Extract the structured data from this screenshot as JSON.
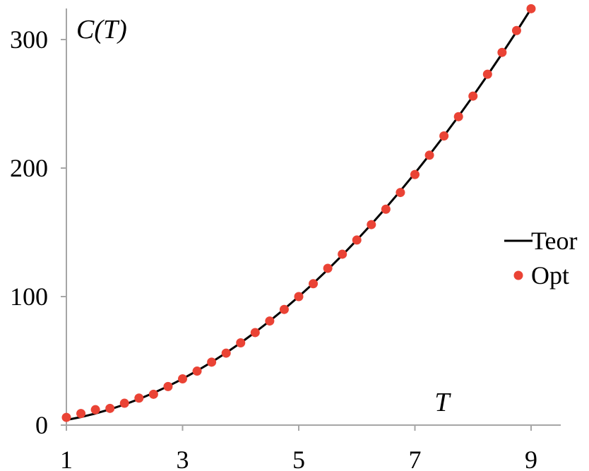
{
  "chart_data": {
    "type": "line",
    "title": "",
    "xlabel": "T",
    "ylabel": "C(T)",
    "xlim": [
      1,
      9.5
    ],
    "ylim": [
      0,
      330
    ],
    "x_ticks": [
      1,
      3,
      5,
      7,
      9
    ],
    "y_ticks": [
      0,
      100,
      200,
      300
    ],
    "grid": false,
    "legend_position": "right",
    "series": [
      {
        "name": "Teor",
        "kind": "line",
        "color": "#000000",
        "function": "C(T) = 4T^2",
        "x": [
          1,
          1.25,
          1.5,
          1.75,
          2,
          2.25,
          2.5,
          2.75,
          3,
          3.25,
          3.5,
          3.75,
          4,
          4.25,
          4.5,
          4.75,
          5,
          5.25,
          5.5,
          5.75,
          6,
          6.25,
          6.5,
          6.75,
          7,
          7.25,
          7.5,
          7.75,
          8,
          8.25,
          8.5,
          8.75,
          9
        ],
        "values": [
          4,
          6.25,
          9,
          12.25,
          16,
          20.25,
          25,
          30.25,
          36,
          42.25,
          49,
          56.25,
          64,
          72.25,
          81,
          90.25,
          100,
          110.25,
          121,
          132.25,
          144,
          156.25,
          169,
          182.25,
          196,
          210.25,
          225,
          240.25,
          256,
          272.25,
          289,
          306.25,
          324
        ]
      },
      {
        "name": "Opt",
        "kind": "scatter",
        "color": "#ea4335",
        "x": [
          1,
          1.25,
          1.5,
          1.75,
          2,
          2.25,
          2.5,
          2.75,
          3,
          3.25,
          3.5,
          3.75,
          4,
          4.25,
          4.5,
          4.75,
          5,
          5.25,
          5.5,
          5.75,
          6,
          6.25,
          6.5,
          6.75,
          7,
          7.25,
          7.5,
          7.75,
          8,
          8.25,
          8.5,
          8.75,
          9
        ],
        "values": [
          6,
          9,
          12,
          13,
          17,
          21,
          24,
          30,
          36,
          42,
          49,
          56,
          64,
          72,
          81,
          90,
          100,
          110,
          122,
          133,
          144,
          156,
          168,
          181,
          195,
          210,
          225,
          240,
          256,
          273,
          290,
          307,
          324
        ]
      }
    ]
  }
}
